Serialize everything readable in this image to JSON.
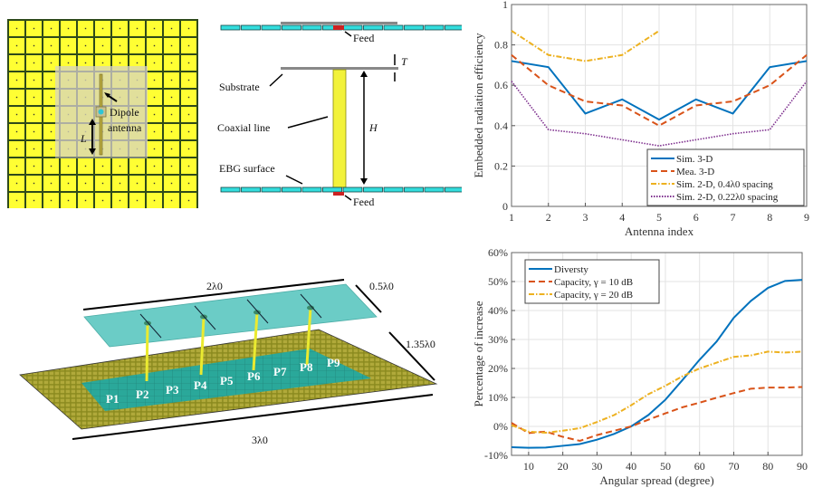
{
  "figure_panels": {
    "ebg_top_view": {
      "label_dipole": "Dipole",
      "label_antenna": "antenna",
      "label_length": "L",
      "colors": {
        "patch": "#ffff33",
        "gap": "#2e4a1a",
        "overlay": "#d8d6b8"
      }
    },
    "side_view": {
      "label_feed_top": "Feed",
      "label_feed_bottom": "Feed",
      "label_substrate": "Substrate",
      "label_coax": "Coaxial line",
      "label_ebg": "EBG surface",
      "label_T": "T",
      "label_H": "H",
      "colors": {
        "ebg": "#33dddd",
        "coax": "#f2f23a",
        "feed": "#cc2222",
        "substrate": "#888888"
      }
    },
    "array_3d": {
      "ports": [
        "P1",
        "P2",
        "P3",
        "P4",
        "P5",
        "P6",
        "P7",
        "P8",
        "P9"
      ],
      "dim_top_length": "2λ0",
      "dim_top_width": "0.5λ0",
      "dim_ground_width": "1.35λ0",
      "dim_ground_length": "3λ0",
      "colors": {
        "ground": "#8a8a1e",
        "center": "#2aa89a",
        "top": "#5cc7c0",
        "coax": "#eaea30"
      }
    }
  },
  "chart_data": [
    {
      "type": "line",
      "title": "",
      "xlabel": "Antenna index",
      "ylabel": "Embedded radiation efficiency",
      "x": [
        1,
        2,
        3,
        4,
        5,
        6,
        7,
        8,
        9
      ],
      "xlim": [
        1,
        9
      ],
      "ylim": [
        0,
        1
      ],
      "xticks": [
        "1",
        "2",
        "3",
        "4",
        "5",
        "6",
        "7",
        "8",
        "9"
      ],
      "yticks": [
        "0",
        "0.2",
        "0.4",
        "0.6",
        "0.8",
        "1"
      ],
      "grid": true,
      "legend_position": "bottom-right",
      "series": [
        {
          "name": "Sim. 3-D",
          "style": "solid",
          "color": "#0072bd",
          "x": [
            1,
            2,
            3,
            4,
            5,
            6,
            7,
            8,
            9
          ],
          "values": [
            0.72,
            0.69,
            0.46,
            0.53,
            0.43,
            0.53,
            0.46,
            0.69,
            0.72
          ]
        },
        {
          "name": "Mea. 3-D",
          "style": "dashed",
          "color": "#d95319",
          "x": [
            1,
            2,
            3,
            4,
            5,
            6,
            7,
            8,
            9
          ],
          "values": [
            0.75,
            0.6,
            0.52,
            0.5,
            0.4,
            0.5,
            0.52,
            0.6,
            0.75
          ]
        },
        {
          "name": "Sim. 2-D, 0.4λ0 spacing",
          "style": "dashdot",
          "color": "#edb120",
          "x": [
            1,
            2,
            3,
            4,
            5
          ],
          "values": [
            0.87,
            0.75,
            0.72,
            0.75,
            0.87
          ]
        },
        {
          "name": "Sim. 2-D, 0.22λ0 spacing",
          "style": "dotted",
          "color": "#7e2f8e",
          "x": [
            1,
            2,
            3,
            4,
            5,
            6,
            7,
            8,
            9
          ],
          "values": [
            0.62,
            0.38,
            0.36,
            0.33,
            0.3,
            0.33,
            0.36,
            0.38,
            0.62
          ]
        }
      ]
    },
    {
      "type": "line",
      "title": "",
      "xlabel": "Angular spread (degree)",
      "ylabel": "Percentage of increase",
      "xlim": [
        5,
        90
      ],
      "ylim": [
        -10,
        60
      ],
      "xticks": [
        "10",
        "20",
        "30",
        "40",
        "50",
        "60",
        "70",
        "80",
        "90"
      ],
      "yticks": [
        "-10%",
        "0%",
        "10%",
        "20%",
        "30%",
        "40%",
        "50%",
        "60%"
      ],
      "grid": true,
      "legend_position": "top-left",
      "series": [
        {
          "name": "Diversty",
          "style": "solid",
          "color": "#0072bd",
          "x": [
            5,
            10,
            15,
            20,
            25,
            30,
            35,
            40,
            45,
            50,
            55,
            60,
            65,
            70,
            75,
            80,
            85,
            90
          ],
          "values": [
            -7.2,
            -7.4,
            -7.3,
            -6.7,
            -6.1,
            -4.6,
            -2.6,
            0,
            3.9,
            9.2,
            16.0,
            23.0,
            29.3,
            37.5,
            43.3,
            47.8,
            50.2,
            50.6
          ]
        },
        {
          "name": "Capacity, γ = 10 dB",
          "style": "dashed",
          "color": "#d95319",
          "x": [
            5,
            10,
            15,
            20,
            25,
            30,
            35,
            40,
            45,
            50,
            55,
            60,
            65,
            70,
            75,
            80,
            85,
            90
          ],
          "values": [
            1.2,
            -2.3,
            -1.8,
            -3.6,
            -5.0,
            -3.0,
            -1.5,
            0,
            2.3,
            4.5,
            6.6,
            8.2,
            9.9,
            11.5,
            13.0,
            13.4,
            13.4,
            13.6
          ]
        },
        {
          "name": "Capacity, γ = 20 dB",
          "style": "dashdot",
          "color": "#edb120",
          "x": [
            5,
            10,
            15,
            20,
            25,
            30,
            35,
            40,
            45,
            50,
            55,
            60,
            65,
            70,
            75,
            80,
            85,
            90
          ],
          "values": [
            0.4,
            -1.8,
            -2.2,
            -1.5,
            -0.6,
            1.5,
            3.9,
            7.3,
            11.1,
            14.0,
            17.3,
            20.0,
            22.0,
            24.0,
            24.5,
            25.8,
            25.5,
            25.8
          ]
        }
      ]
    }
  ]
}
